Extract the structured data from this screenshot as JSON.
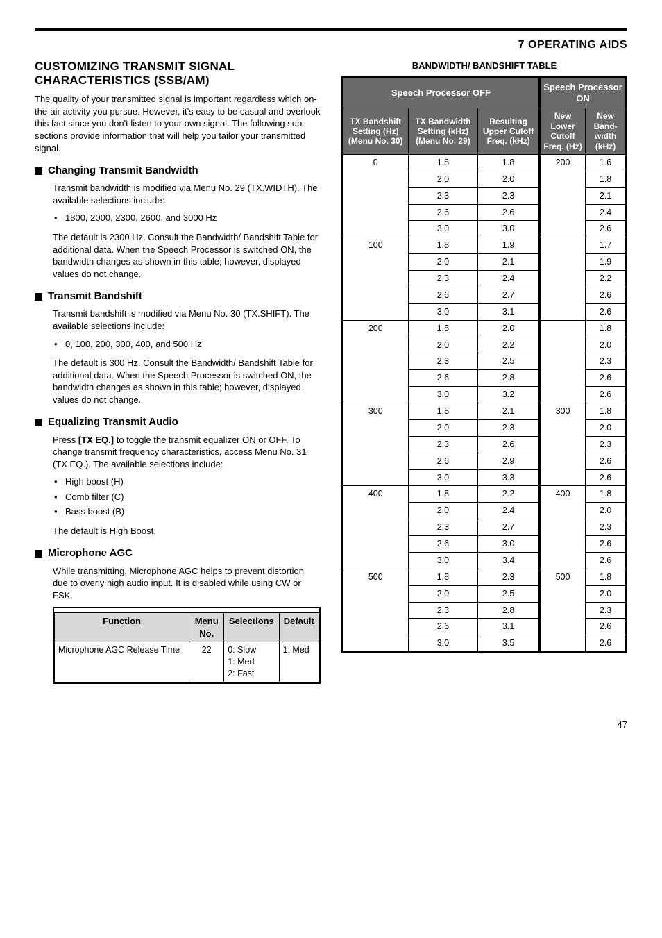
{
  "chapter": "7  OPERATING AIDS",
  "left": {
    "title": "CUSTOMIZING TRANSMIT SIGNAL CHARACTERISTICS (SSB/AM)",
    "intro": "The quality of your transmitted signal is important regardless which on-the-air activity you pursue.  However, it's easy to be casual and overlook this fact since you don't listen to your own signal.  The following sub-sections provide information that will help you tailor your transmitted signal.",
    "s1": {
      "head": "Changing Transmit Bandwidth",
      "p1": "Transmit bandwidth is modified via Menu No. 29 (TX.WIDTH).  The available selections include:",
      "bullet": "1800, 2000, 2300, 2600, and 3000 Hz",
      "p2": "The default is 2300 Hz.  Consult the Bandwidth/ Bandshift Table for additional data.  When the Speech Processor is switched ON, the bandwidth changes as shown in this table; however, displayed values do not change."
    },
    "s2": {
      "head": "Transmit Bandshift",
      "p1": "Transmit bandshift is modified via Menu No. 30 (TX.SHIFT).  The available selections include:",
      "bullet": "0, 100, 200, 300, 400, and 500 Hz",
      "p2": "The default is 300 Hz.  Consult the Bandwidth/ Bandshift Table for additional data.  When the Speech Processor is switched ON, the bandwidth changes as shown in this table; however, displayed values do not change."
    },
    "s3": {
      "head": "Equalizing Transmit Audio",
      "p1a": "Press ",
      "p1b": "[TX EQ.]",
      "p1c": " to toggle the transmit equalizer ON or OFF.  To change transmit frequency characteristics, access Menu No. 31 (TX EQ.).  The available selections include:",
      "b1": "High boost (H)",
      "b2": "Comb filter (C)",
      "b3": "Bass boost (B)",
      "p2": "The default is High Boost."
    },
    "s4": {
      "head": "Microphone AGC",
      "p1": "While transmitting, Microphone AGC helps to prevent distortion due to overly high audio input.  It is disabled while using CW or FSK.",
      "table": {
        "headers": [
          "Function",
          "Menu No.",
          "Selections",
          "Default"
        ],
        "row": {
          "func": "Microphone AGC Release Time",
          "menu": "22",
          "sel": "0:  Slow\n1:  Med\n2:  Fast",
          "def": "1:  Med"
        }
      }
    }
  },
  "right": {
    "caption": "BANDWIDTH/ BANDSHIFT TABLE",
    "group_off": "Speech Processor OFF",
    "group_on": "Speech Processor ON",
    "hdr_off": [
      "TX Bandshift Setting (Hz) (Menu No. 30)",
      "TX Bandwidth Setting (kHz) (Menu No. 29)",
      "Resulting Upper Cutoff Freq. (kHz)"
    ],
    "hdr_on": [
      "New Lower Cutoff Freq. (Hz)",
      "New Band-width (kHz)"
    ],
    "groups": [
      {
        "shift": "0",
        "lcut": "200",
        "rows": [
          [
            "1.8",
            "1.8",
            "1.6"
          ],
          [
            "2.0",
            "2.0",
            "1.8"
          ],
          [
            "2.3",
            "2.3",
            "2.1"
          ],
          [
            "2.6",
            "2.6",
            "2.4"
          ],
          [
            "3.0",
            "3.0",
            "2.6"
          ]
        ]
      },
      {
        "shift": "100",
        "lcut": "",
        "rows": [
          [
            "1.8",
            "1.9",
            "1.7"
          ],
          [
            "2.0",
            "2.1",
            "1.9"
          ],
          [
            "2.3",
            "2.4",
            "2.2"
          ],
          [
            "2.6",
            "2.7",
            "2.6"
          ],
          [
            "3.0",
            "3.1",
            "2.6"
          ]
        ]
      },
      {
        "shift": "200",
        "lcut": "",
        "rows": [
          [
            "1.8",
            "2.0",
            "1.8"
          ],
          [
            "2.0",
            "2.2",
            "2.0"
          ],
          [
            "2.3",
            "2.5",
            "2.3"
          ],
          [
            "2.6",
            "2.8",
            "2.6"
          ],
          [
            "3.0",
            "3.2",
            "2.6"
          ]
        ]
      },
      {
        "shift": "300",
        "lcut": "300",
        "rows": [
          [
            "1.8",
            "2.1",
            "1.8"
          ],
          [
            "2.0",
            "2.3",
            "2.0"
          ],
          [
            "2.3",
            "2.6",
            "2.3"
          ],
          [
            "2.6",
            "2.9",
            "2.6"
          ],
          [
            "3.0",
            "3.3",
            "2.6"
          ]
        ]
      },
      {
        "shift": "400",
        "lcut": "400",
        "rows": [
          [
            "1.8",
            "2.2",
            "1.8"
          ],
          [
            "2.0",
            "2.4",
            "2.0"
          ],
          [
            "2.3",
            "2.7",
            "2.3"
          ],
          [
            "2.6",
            "3.0",
            "2.6"
          ],
          [
            "3.0",
            "3.4",
            "2.6"
          ]
        ]
      },
      {
        "shift": "500",
        "lcut": "500",
        "rows": [
          [
            "1.8",
            "2.3",
            "1.8"
          ],
          [
            "2.0",
            "2.5",
            "2.0"
          ],
          [
            "2.3",
            "2.8",
            "2.3"
          ],
          [
            "2.6",
            "3.1",
            "2.6"
          ],
          [
            "3.0",
            "3.5",
            "2.6"
          ]
        ]
      }
    ]
  },
  "page": "47"
}
